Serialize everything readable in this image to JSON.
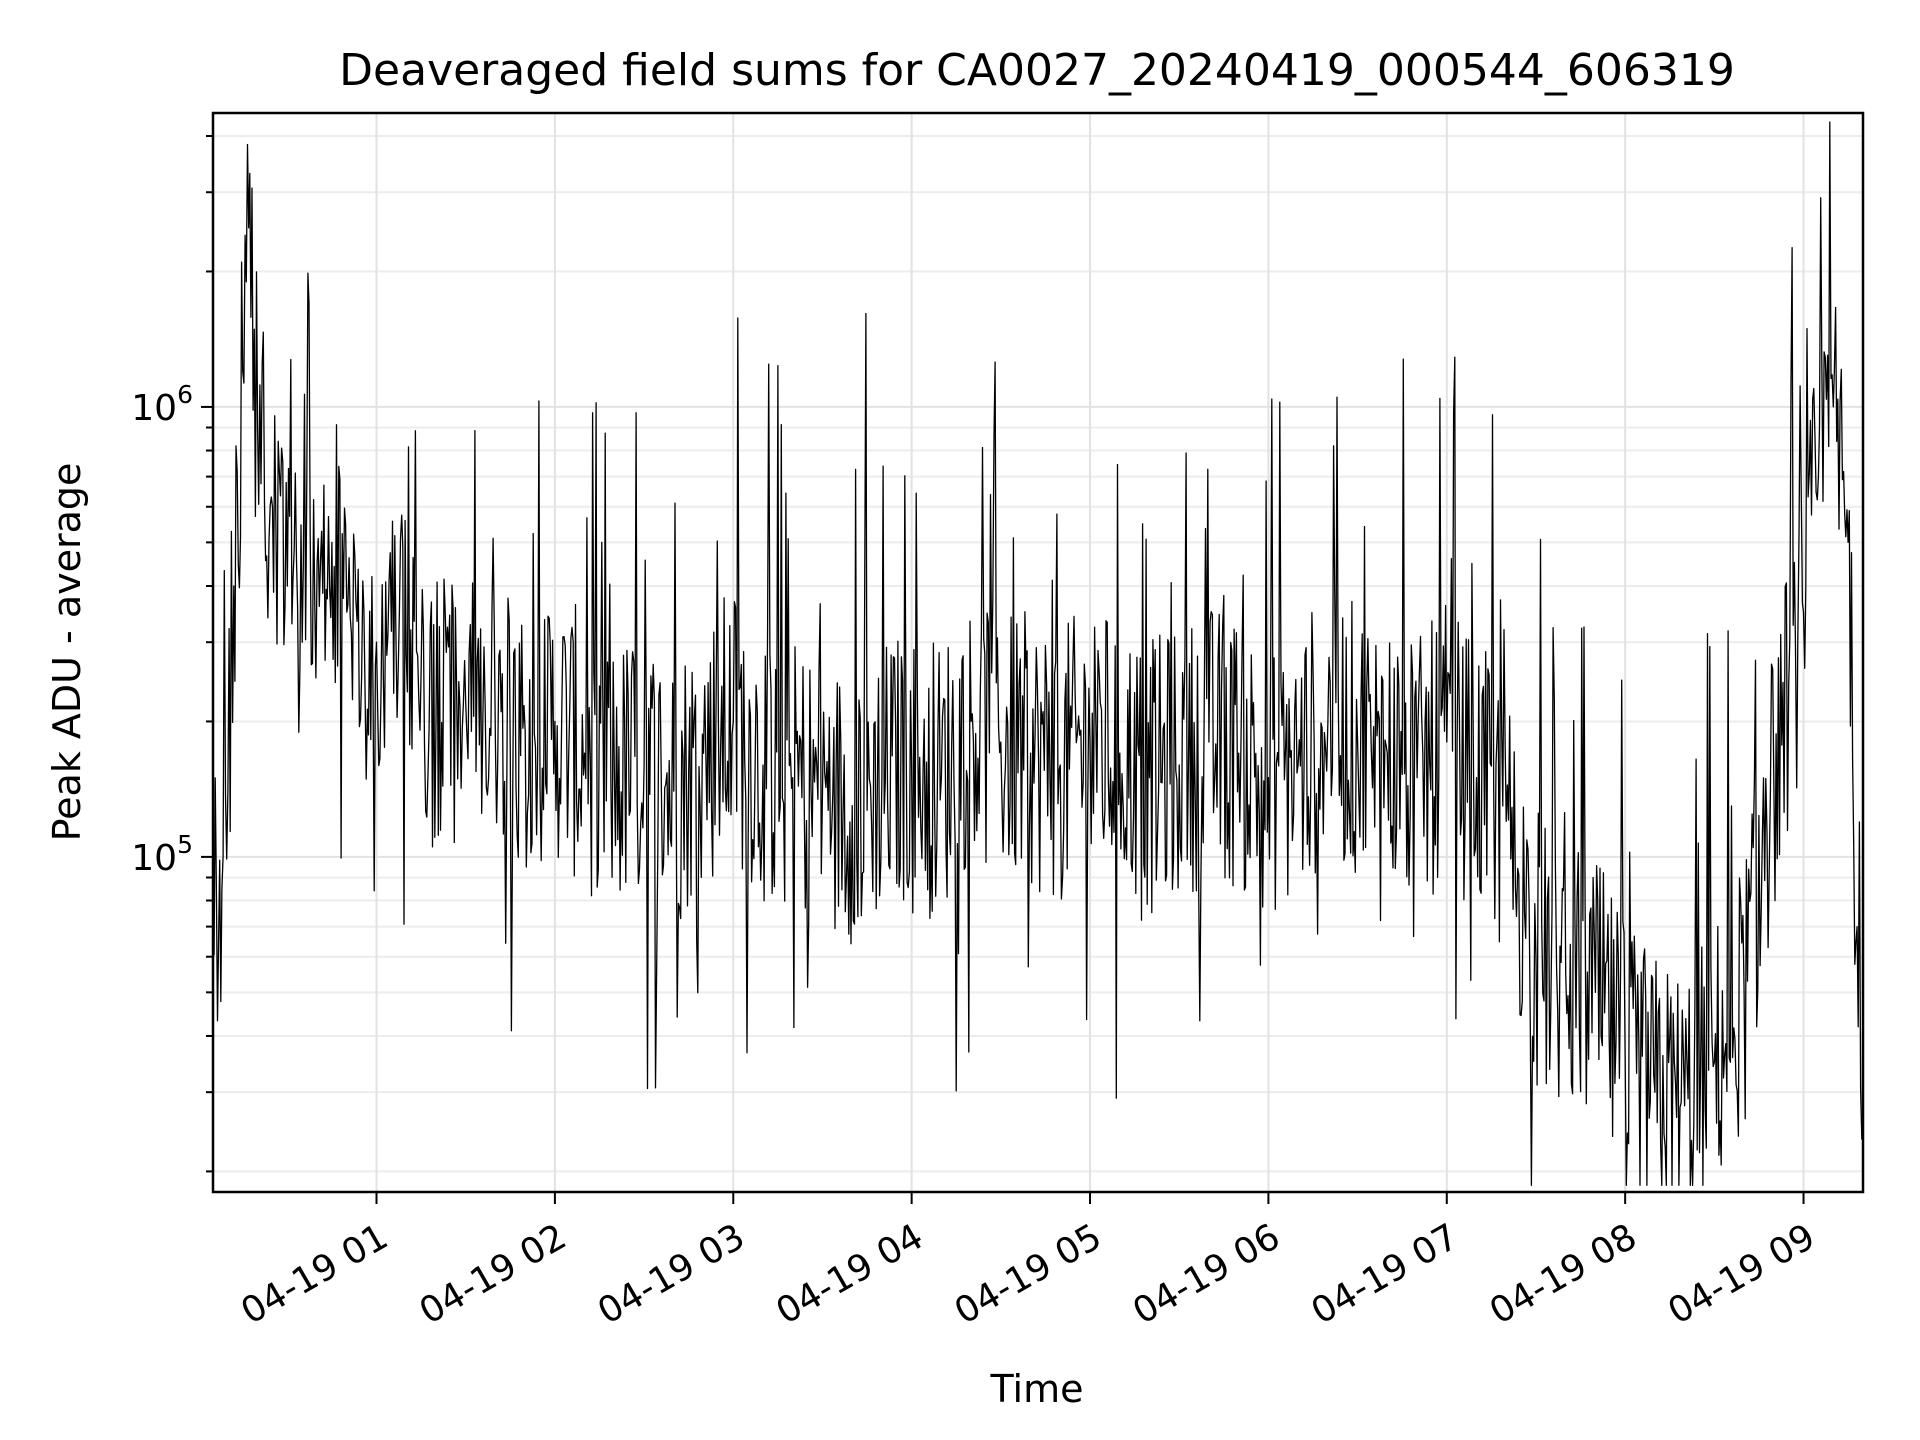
{
  "chart_data": {
    "type": "line",
    "title": "Deaveraged field sums for CA0027_20240419_000544_606319",
    "xlabel": "Time",
    "ylabel": "Peak ADU - average",
    "yscale": "log",
    "grid": true,
    "legend": "none",
    "colors": {
      "line": "#000000",
      "grid": "#e2e2e2",
      "background": "#ffffff"
    },
    "xlim": [
      "2024-04-19 00:05",
      "2024-04-19 09:20"
    ],
    "ylim": [
      18000,
      4500000
    ],
    "x_ticks": [
      {
        "value": "2024-04-19 01:00",
        "label": "04-19 01"
      },
      {
        "value": "2024-04-19 02:00",
        "label": "04-19 02"
      },
      {
        "value": "2024-04-19 03:00",
        "label": "04-19 03"
      },
      {
        "value": "2024-04-19 04:00",
        "label": "04-19 04"
      },
      {
        "value": "2024-04-19 05:00",
        "label": "04-19 05"
      },
      {
        "value": "2024-04-19 06:00",
        "label": "04-19 06"
      },
      {
        "value": "2024-04-19 07:00",
        "label": "04-19 07"
      },
      {
        "value": "2024-04-19 08:00",
        "label": "04-19 08"
      },
      {
        "value": "2024-04-19 09:00",
        "label": "04-19 09"
      }
    ],
    "y_ticks": [
      {
        "value": 100000,
        "base": "10",
        "exp": "5"
      },
      {
        "value": 1000000,
        "base": "10",
        "exp": "6"
      }
    ],
    "series": [
      {
        "x": [
          "2024-04-19 00:05",
          "2024-04-19 00:08",
          "2024-04-19 00:10",
          "2024-04-19 00:12",
          "2024-04-19 00:15",
          "2024-04-19 00:17",
          "2024-04-19 00:20",
          "2024-04-19 00:25",
          "2024-04-19 00:30",
          "2024-04-19 00:35",
          "2024-04-19 00:40",
          "2024-04-19 00:45",
          "2024-04-19 00:50",
          "2024-04-19 00:55",
          "2024-04-19 01:00",
          "2024-04-19 01:10",
          "2024-04-19 01:20",
          "2024-04-19 01:30",
          "2024-04-19 01:40",
          "2024-04-19 01:50",
          "2024-04-19 02:00",
          "2024-04-19 02:10",
          "2024-04-19 02:20",
          "2024-04-19 02:30",
          "2024-04-19 02:40",
          "2024-04-19 02:50",
          "2024-04-19 03:00",
          "2024-04-19 03:10",
          "2024-04-19 03:20",
          "2024-04-19 03:30",
          "2024-04-19 03:40",
          "2024-04-19 03:50",
          "2024-04-19 04:00",
          "2024-04-19 04:10",
          "2024-04-19 04:20",
          "2024-04-19 04:30",
          "2024-04-19 04:40",
          "2024-04-19 04:50",
          "2024-04-19 05:00",
          "2024-04-19 05:10",
          "2024-04-19 05:20",
          "2024-04-19 05:30",
          "2024-04-19 05:40",
          "2024-04-19 05:50",
          "2024-04-19 06:00",
          "2024-04-19 06:10",
          "2024-04-19 06:20",
          "2024-04-19 06:30",
          "2024-04-19 06:40",
          "2024-04-19 06:50",
          "2024-04-19 07:00",
          "2024-04-19 07:10",
          "2024-04-19 07:20",
          "2024-04-19 07:30",
          "2024-04-19 07:40",
          "2024-04-19 07:50",
          "2024-04-19 08:00",
          "2024-04-19 08:10",
          "2024-04-19 08:20",
          "2024-04-19 08:30",
          "2024-04-19 08:40",
          "2024-04-19 08:50",
          "2024-04-19 09:00",
          "2024-04-19 09:05",
          "2024-04-19 09:10",
          "2024-04-19 09:15",
          "2024-04-19 09:18",
          "2024-04-19 09:20"
        ],
        "y": [
          75000,
          85000,
          140000,
          400000,
          1200000,
          2500000,
          900000,
          600000,
          400000,
          300000,
          450000,
          500000,
          350000,
          250000,
          300000,
          280000,
          200000,
          220000,
          180000,
          190000,
          200000,
          170000,
          150000,
          160000,
          140000,
          170000,
          200000,
          160000,
          150000,
          140000,
          130000,
          150000,
          160000,
          150000,
          200000,
          180000,
          170000,
          160000,
          180000,
          170000,
          150000,
          160000,
          180000,
          170000,
          150000,
          160000,
          200000,
          180000,
          170000,
          150000,
          180000,
          150000,
          120000,
          60000,
          55000,
          50000,
          35000,
          30000,
          28000,
          35000,
          50000,
          150000,
          350000,
          700000,
          1000000,
          500000,
          70000,
          28000
        ]
      }
    ]
  }
}
